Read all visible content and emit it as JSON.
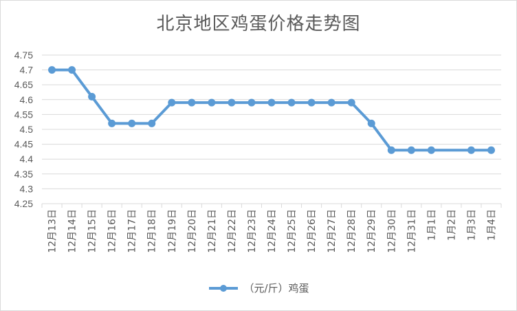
{
  "chart_data": {
    "type": "line",
    "title": "北京地区鸡蛋价格走势图",
    "categories": [
      "12月13日",
      "12月14日",
      "12月15日",
      "12月16日",
      "12月17日",
      "12月18日",
      "12月19日",
      "12月20日",
      "12月21日",
      "12月22日",
      "12月23日",
      "12月24日",
      "12月25日",
      "12月26日",
      "12月27日",
      "12月28日",
      "12月29日",
      "12月30日",
      "12月31日",
      "1月1日",
      "1月2日",
      "1月3日",
      "1月4日"
    ],
    "series": [
      {
        "name": "（元/斤）鸡蛋",
        "values": [
          4.7,
          4.7,
          4.61,
          4.52,
          4.52,
          4.52,
          4.59,
          4.59,
          4.59,
          4.59,
          4.59,
          4.59,
          4.59,
          4.59,
          4.59,
          4.59,
          4.52,
          4.43,
          4.43,
          4.43,
          null,
          4.43,
          4.43
        ],
        "color": "#5b9bd5"
      }
    ],
    "yticks": [
      "4.25",
      "4.3",
      "4.35",
      "4.4",
      "4.45",
      "4.5",
      "4.55",
      "4.6",
      "4.65",
      "4.7",
      "4.75"
    ],
    "ylim": [
      4.25,
      4.75
    ],
    "grid": true,
    "legend": "bottom",
    "colors": {
      "gridline": "#d9d9d9",
      "text": "#595959"
    }
  }
}
